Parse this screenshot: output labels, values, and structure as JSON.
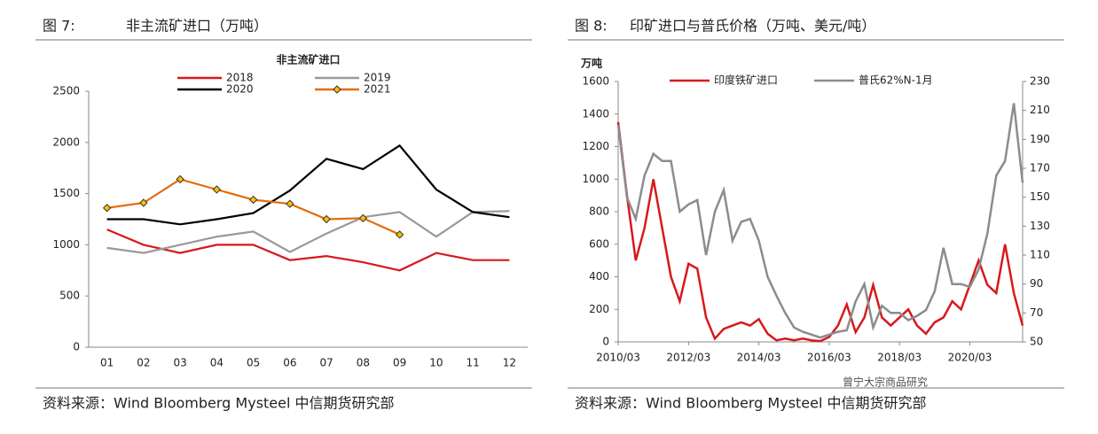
{
  "chart_data": [
    {
      "type": "line",
      "caption_num": "图 7:",
      "caption": "非主流矿进口（万吨）",
      "title": "非主流矿进口",
      "source": "资料来源：Wind Bloomberg Mysteel 中信期货研究部",
      "categories": [
        "01",
        "02",
        "03",
        "04",
        "05",
        "06",
        "07",
        "08",
        "09",
        "10",
        "11",
        "12"
      ],
      "ylim": [
        0,
        2500
      ],
      "yticks": [
        0,
        500,
        1000,
        1500,
        2000,
        2500
      ],
      "series": [
        {
          "name": "2018",
          "color": "#d7191c",
          "values": [
            1150,
            1000,
            920,
            1000,
            1000,
            850,
            890,
            830,
            750,
            920,
            850,
            850
          ]
        },
        {
          "name": "2019",
          "color": "#999999",
          "values": [
            970,
            920,
            1000,
            1080,
            1130,
            930,
            1110,
            1270,
            1320,
            1080,
            1320,
            1330
          ]
        },
        {
          "name": "2020",
          "color": "#000000",
          "values": [
            1250,
            1250,
            1200,
            1250,
            1310,
            1530,
            1840,
            1740,
            1970,
            1540,
            1320,
            1270
          ]
        },
        {
          "name": "2021",
          "color": "#e46c0a",
          "marker": "diamond",
          "values": [
            1360,
            1410,
            1640,
            1540,
            1440,
            1400,
            1250,
            1260,
            1100,
            null,
            null,
            null
          ]
        }
      ]
    },
    {
      "type": "line",
      "caption_num": "图 8:",
      "caption": "印矿进口与普氏价格（万吨、美元/吨）",
      "ylabel": "万吨",
      "source": "资料来源：Wind Bloomberg Mysteel 中信期货研究部",
      "x": [
        "2010/03",
        "2010/06",
        "2010/09",
        "2010/12",
        "2011/03",
        "2011/06",
        "2011/09",
        "2011/12",
        "2012/03",
        "2012/06",
        "2012/09",
        "2012/12",
        "2013/03",
        "2013/06",
        "2013/09",
        "2013/12",
        "2014/03",
        "2014/06",
        "2014/09",
        "2014/12",
        "2015/03",
        "2015/06",
        "2015/09",
        "2015/12",
        "2016/03",
        "2016/06",
        "2016/09",
        "2016/12",
        "2017/03",
        "2017/06",
        "2017/09",
        "2017/12",
        "2018/03",
        "2018/06",
        "2018/09",
        "2018/12",
        "2019/03",
        "2019/06",
        "2019/09",
        "2019/12",
        "2020/03",
        "2020/06",
        "2020/09",
        "2020/12",
        "2021/03",
        "2021/06",
        "2021/09"
      ],
      "xlim": [
        "2010/03",
        "2021/09"
      ],
      "xticks": [
        "2010/03",
        "2012/03",
        "2014/03",
        "2016/03",
        "2018/03",
        "2020/03"
      ],
      "ylim": [
        0,
        1600
      ],
      "yticks": [
        0,
        200,
        400,
        600,
        800,
        1000,
        1200,
        1400,
        1600
      ],
      "y2lim": [
        50,
        230
      ],
      "y2ticks": [
        50,
        70,
        90,
        110,
        130,
        150,
        170,
        190,
        210,
        230
      ],
      "series": [
        {
          "name": "印度铁矿进口",
          "color": "#d7191c",
          "values": [
            1350,
            900,
            500,
            700,
            1000,
            700,
            400,
            250,
            480,
            450,
            150,
            20,
            80,
            100,
            120,
            100,
            140,
            50,
            10,
            20,
            10,
            20,
            10,
            5,
            30,
            100,
            230,
            60,
            150,
            350,
            150,
            100,
            150,
            200,
            100,
            50,
            120,
            150,
            250,
            200,
            350,
            500,
            350,
            300,
            600,
            300,
            100
          ]
        },
        {
          "name": "普氏62%N-1月",
          "color": "#8c8c8c",
          "axis": "y2",
          "values": [
            200,
            150,
            135,
            165,
            180,
            175,
            175,
            140,
            145,
            148,
            110,
            140,
            155,
            120,
            133,
            135,
            120,
            95,
            82,
            70,
            60,
            57,
            55,
            53,
            55,
            57,
            58,
            78,
            90,
            60,
            75,
            70,
            70,
            65,
            68,
            72,
            85,
            115,
            90,
            90,
            88,
            100,
            125,
            165,
            175,
            215,
            160
          ]
        }
      ]
    }
  ],
  "watermark": "曾宁大宗商品研究"
}
